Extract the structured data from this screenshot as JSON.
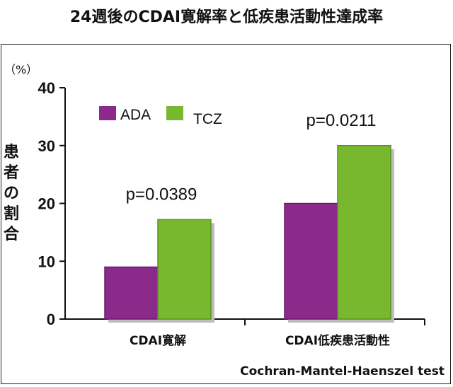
{
  "chart_data": {
    "type": "bar",
    "title": "24週後のCDAI寛解率と低疾患活動性達成率",
    "ylabel": "患者の割合",
    "unit": "（%）",
    "categories": [
      "CDAI寛解",
      "CDAI低疾患活動性"
    ],
    "series": [
      {
        "name": "ADA",
        "values": [
          9,
          20
        ],
        "color": "#8b2a8b"
      },
      {
        "name": "TCZ",
        "values": [
          17.2,
          30
        ],
        "color": "#78b82e"
      }
    ],
    "ylim": [
      0,
      40
    ],
    "yticks": [
      0,
      10,
      20,
      30,
      40
    ],
    "annotations": [
      "p=0.0389",
      "p=0.0211"
    ],
    "footnote": "Cochran-Mantel-Haenszel test",
    "legend": "top-left",
    "grid": false
  }
}
